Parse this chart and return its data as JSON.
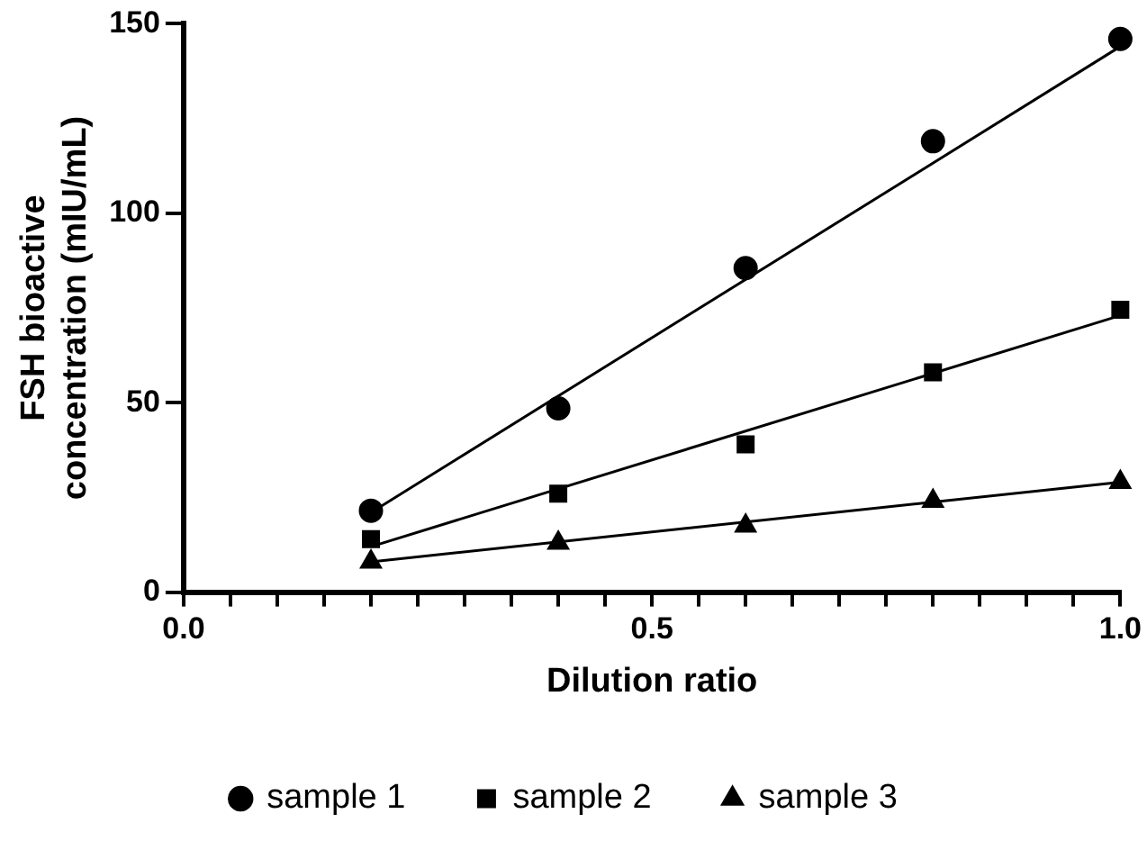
{
  "chart_data": {
    "type": "scatter",
    "xlabel": "Dilution ratio",
    "ylabel": "FSH bioactive concentration (mIU/mL)",
    "xlim": [
      0,
      1
    ],
    "ylim": [
      0,
      150
    ],
    "xticks": [
      {
        "value": 0,
        "label": "0.0"
      },
      {
        "value": 0.05,
        "label": null
      },
      {
        "value": 0.1,
        "label": null
      },
      {
        "value": 0.15,
        "label": null
      },
      {
        "value": 0.2,
        "label": null
      },
      {
        "value": 0.25,
        "label": null
      },
      {
        "value": 0.3,
        "label": null
      },
      {
        "value": 0.35,
        "label": null
      },
      {
        "value": 0.4,
        "label": null
      },
      {
        "value": 0.45,
        "label": null
      },
      {
        "value": 0.5,
        "label": "0.5"
      },
      {
        "value": 0.55,
        "label": null
      },
      {
        "value": 0.6,
        "label": null
      },
      {
        "value": 0.65,
        "label": null
      },
      {
        "value": 0.7,
        "label": null
      },
      {
        "value": 0.75,
        "label": null
      },
      {
        "value": 0.8,
        "label": null
      },
      {
        "value": 0.85,
        "label": null
      },
      {
        "value": 0.9,
        "label": null
      },
      {
        "value": 0.95,
        "label": null
      },
      {
        "value": 1,
        "label": "1.0"
      }
    ],
    "yticks": [
      0,
      50,
      100,
      150
    ],
    "grid": false,
    "legend": "bottom",
    "series": [
      {
        "name": "sample 1",
        "type": "scatter",
        "marker": "circle",
        "color": "#000000",
        "x": [
          0.2,
          0.4,
          0.6,
          0.8,
          1.0
        ],
        "values": [
          21.5,
          48.5,
          85.5,
          119,
          146
        ]
      },
      {
        "name": "sample 2",
        "type": "scatter",
        "marker": "square",
        "color": "#000000",
        "x": [
          0.2,
          0.4,
          0.6,
          0.8,
          1.0
        ],
        "values": [
          14,
          26,
          39,
          58,
          74.5
        ]
      },
      {
        "name": "sample 3",
        "type": "scatter",
        "marker": "triangle",
        "color": "#000000",
        "x": [
          0.2,
          0.4,
          0.6,
          0.8,
          1.0
        ],
        "values": [
          8,
          13,
          17.5,
          24,
          29
        ]
      },
      {
        "type": "line",
        "marker": "none",
        "color": "#000000",
        "x": [
          0.2,
          1.0
        ],
        "values": [
          21,
          144
        ]
      },
      {
        "type": "line",
        "marker": "none",
        "color": "#000000",
        "x": [
          0.2,
          1.0
        ],
        "values": [
          12,
          73
        ]
      },
      {
        "type": "line",
        "marker": "none",
        "color": "#000000",
        "x": [
          0.2,
          1.0
        ],
        "values": [
          8,
          29
        ]
      }
    ]
  }
}
